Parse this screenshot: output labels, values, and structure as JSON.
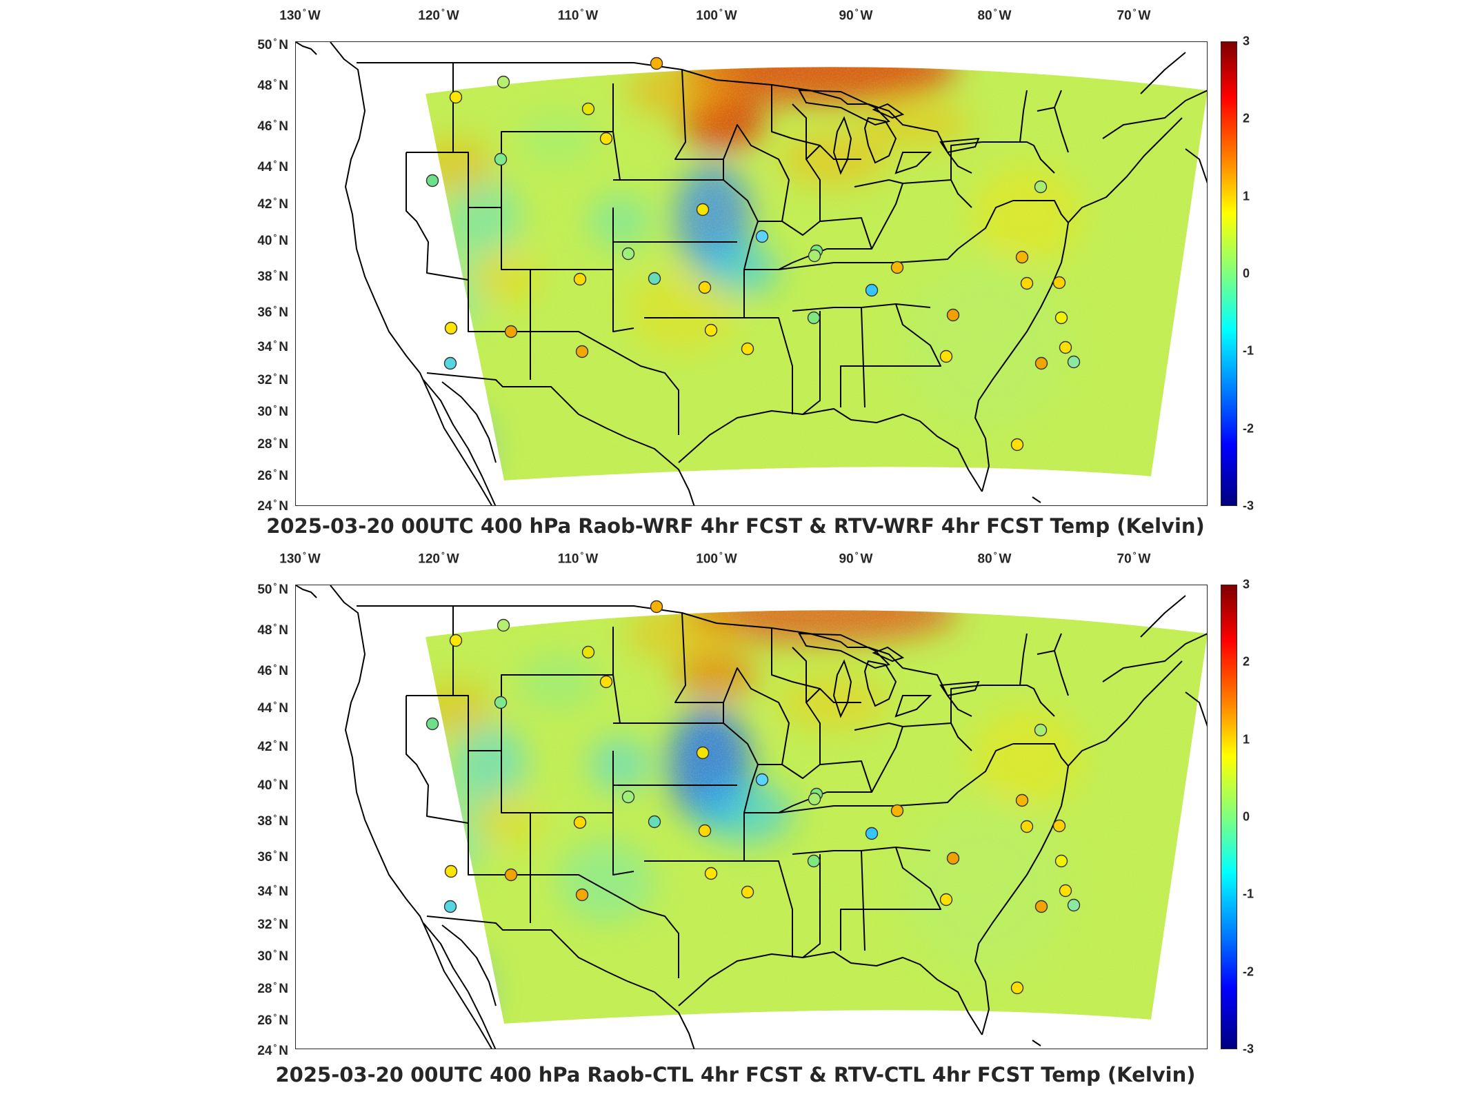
{
  "panels": [
    {
      "id": "top",
      "title": "2025-03-20 00UTC 400 hPa Raob-WRF 4hr FCST & RTV-WRF 4hr FCST Temp (Kelvin)"
    },
    {
      "id": "bottom",
      "title": "2025-03-20 00UTC 400 hPa Raob-CTL 4hr FCST & RTV-CTL 4hr FCST Temp (Kelvin)"
    }
  ],
  "axes": {
    "lon_ticks": [
      {
        "value": "130",
        "hemi": "W"
      },
      {
        "value": "120",
        "hemi": "W"
      },
      {
        "value": "110",
        "hemi": "W"
      },
      {
        "value": "100",
        "hemi": "W"
      },
      {
        "value": "90",
        "hemi": "W"
      },
      {
        "value": "80",
        "hemi": "W"
      },
      {
        "value": "70",
        "hemi": "W"
      }
    ],
    "lat_ticks": [
      {
        "value": "50",
        "hemi": "N"
      },
      {
        "value": "48",
        "hemi": "N"
      },
      {
        "value": "46",
        "hemi": "N"
      },
      {
        "value": "44",
        "hemi": "N"
      },
      {
        "value": "42",
        "hemi": "N"
      },
      {
        "value": "40",
        "hemi": "N"
      },
      {
        "value": "38",
        "hemi": "N"
      },
      {
        "value": "36",
        "hemi": "N"
      },
      {
        "value": "34",
        "hemi": "N"
      },
      {
        "value": "32",
        "hemi": "N"
      },
      {
        "value": "30",
        "hemi": "N"
      },
      {
        "value": "28",
        "hemi": "N"
      },
      {
        "value": "26",
        "hemi": "N"
      },
      {
        "value": "24",
        "hemi": "N"
      }
    ],
    "degree_symbol": "°"
  },
  "colorbar": {
    "ticks": [
      "3",
      "2",
      "1",
      "0",
      "-1",
      "-2",
      "-3"
    ],
    "range": [
      -3,
      3
    ],
    "colormap": "jet",
    "colors": [
      "#7f0000",
      "#ff0000",
      "#ff7f00",
      "#ffff00",
      "#7fff7f",
      "#00ffff",
      "#007fff",
      "#0000ff",
      "#00007f"
    ]
  },
  "map": {
    "projection": "lambert-conformal",
    "extent": {
      "lon": [
        -130,
        -65
      ],
      "lat": [
        24,
        50
      ]
    },
    "raob_marker_style": "hollow circle, fill = Raob difference color"
  }
}
